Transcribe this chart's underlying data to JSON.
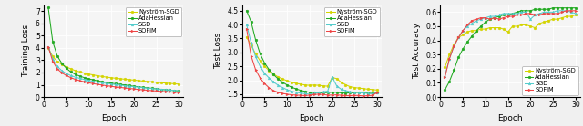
{
  "epochs": [
    1,
    2,
    3,
    4,
    5,
    6,
    7,
    8,
    9,
    10,
    11,
    12,
    13,
    14,
    15,
    16,
    17,
    18,
    19,
    20,
    21,
    22,
    23,
    24,
    25,
    26,
    27,
    28,
    29,
    30
  ],
  "train_loss": {
    "nystrom": [
      4.0,
      3.3,
      2.9,
      2.65,
      2.45,
      2.3,
      2.15,
      2.05,
      1.95,
      1.87,
      1.8,
      1.73,
      1.67,
      1.62,
      1.57,
      1.53,
      1.49,
      1.45,
      1.41,
      1.38,
      1.34,
      1.3,
      1.27,
      1.24,
      1.2,
      1.17,
      1.14,
      1.11,
      1.08,
      1.05
    ],
    "adahessian": [
      7.3,
      4.5,
      3.35,
      2.75,
      2.35,
      2.05,
      1.85,
      1.7,
      1.58,
      1.48,
      1.4,
      1.32,
      1.25,
      1.19,
      1.13,
      1.08,
      1.03,
      0.98,
      0.93,
      0.88,
      0.84,
      0.79,
      0.75,
      0.71,
      0.67,
      0.63,
      0.59,
      0.56,
      0.52,
      0.49
    ],
    "sgd": [
      4.1,
      3.1,
      2.5,
      2.15,
      1.92,
      1.75,
      1.62,
      1.52,
      1.43,
      1.35,
      1.28,
      1.22,
      1.16,
      1.11,
      1.06,
      1.01,
      0.97,
      0.92,
      0.88,
      0.84,
      0.8,
      0.76,
      0.73,
      0.69,
      0.66,
      0.63,
      0.6,
      0.57,
      0.54,
      0.51
    ],
    "sofim": [
      4.1,
      2.9,
      2.3,
      1.98,
      1.75,
      1.58,
      1.44,
      1.33,
      1.24,
      1.16,
      1.09,
      1.03,
      0.97,
      0.92,
      0.87,
      0.82,
      0.78,
      0.74,
      0.7,
      0.66,
      0.62,
      0.59,
      0.55,
      0.52,
      0.49,
      0.46,
      0.44,
      0.41,
      0.39,
      0.36
    ]
  },
  "test_loss": {
    "nystrom": [
      3.55,
      3.25,
      2.95,
      2.7,
      2.5,
      2.35,
      2.22,
      2.12,
      2.05,
      1.98,
      1.93,
      1.89,
      1.86,
      1.83,
      1.82,
      1.83,
      1.82,
      1.8,
      1.79,
      2.1,
      2.06,
      1.93,
      1.84,
      1.77,
      1.74,
      1.72,
      1.7,
      1.68,
      1.67,
      1.65
    ],
    "adahessian": [
      4.5,
      4.1,
      3.45,
      2.95,
      2.62,
      2.38,
      2.2,
      2.05,
      1.93,
      1.83,
      1.75,
      1.69,
      1.64,
      1.6,
      1.57,
      1.56,
      1.55,
      1.55,
      1.56,
      1.57,
      1.57,
      1.55,
      1.54,
      1.55,
      1.56,
      1.57,
      1.56,
      1.54,
      1.53,
      1.55
    ],
    "sgd": [
      4.0,
      3.35,
      2.85,
      2.5,
      2.25,
      2.08,
      1.94,
      1.82,
      1.74,
      1.66,
      1.61,
      1.57,
      1.54,
      1.52,
      1.5,
      1.53,
      1.56,
      1.59,
      1.61,
      2.12,
      1.8,
      1.68,
      1.63,
      1.59,
      1.57,
      1.56,
      1.54,
      1.53,
      1.52,
      1.55
    ],
    "sofim": [
      3.85,
      2.88,
      2.38,
      2.08,
      1.88,
      1.73,
      1.63,
      1.57,
      1.53,
      1.5,
      1.48,
      1.47,
      1.46,
      1.45,
      1.47,
      1.49,
      1.5,
      1.49,
      1.47,
      1.47,
      1.48,
      1.46,
      1.45,
      1.45,
      1.46,
      1.45,
      1.44,
      1.45,
      1.46,
      1.57
    ]
  },
  "test_acc": {
    "nystrom": [
      0.21,
      0.3,
      0.37,
      0.42,
      0.44,
      0.46,
      0.47,
      0.47,
      0.48,
      0.48,
      0.49,
      0.49,
      0.49,
      0.48,
      0.46,
      0.5,
      0.5,
      0.51,
      0.51,
      0.5,
      0.49,
      0.52,
      0.53,
      0.54,
      0.55,
      0.55,
      0.56,
      0.57,
      0.57,
      0.58
    ],
    "adahessian": [
      0.05,
      0.11,
      0.19,
      0.28,
      0.34,
      0.39,
      0.43,
      0.47,
      0.5,
      0.53,
      0.55,
      0.56,
      0.57,
      0.58,
      0.58,
      0.59,
      0.6,
      0.61,
      0.61,
      0.61,
      0.62,
      0.62,
      0.62,
      0.62,
      0.63,
      0.63,
      0.63,
      0.63,
      0.63,
      0.63
    ],
    "sgd": [
      0.15,
      0.27,
      0.36,
      0.42,
      0.47,
      0.5,
      0.52,
      0.54,
      0.55,
      0.56,
      0.57,
      0.57,
      0.58,
      0.59,
      0.59,
      0.59,
      0.59,
      0.6,
      0.6,
      0.55,
      0.58,
      0.59,
      0.6,
      0.6,
      0.6,
      0.61,
      0.61,
      0.61,
      0.6,
      0.59
    ],
    "sofim": [
      0.14,
      0.27,
      0.36,
      0.42,
      0.47,
      0.51,
      0.54,
      0.55,
      0.56,
      0.56,
      0.55,
      0.56,
      0.55,
      0.56,
      0.57,
      0.57,
      0.58,
      0.58,
      0.59,
      0.59,
      0.58,
      0.58,
      0.59,
      0.59,
      0.59,
      0.59,
      0.6,
      0.61,
      0.61,
      0.61
    ]
  },
  "colors": {
    "nystrom": "#d4d400",
    "adahessian": "#22aa22",
    "sgd": "#55cccc",
    "sofim": "#ee4444"
  },
  "markers": {
    "nystrom": "o",
    "adahessian": "o",
    "sgd": "^",
    "sofim": ">"
  },
  "labels": {
    "nystrom": "Nyström-SGD",
    "adahessian": "AdaHessian",
    "sgd": "SGD",
    "sofim": "SOFIM"
  },
  "xticks": [
    0,
    5,
    10,
    15,
    20,
    25,
    30
  ],
  "xlim": [
    0,
    31
  ],
  "train_ylim": [
    0,
    7.5
  ],
  "train_yticks": [
    0,
    1,
    2,
    3,
    4,
    5,
    6,
    7
  ],
  "test_loss_ylim": [
    1.4,
    4.7
  ],
  "test_loss_yticks": [
    1.5,
    2.0,
    2.5,
    3.0,
    3.5,
    4.0,
    4.5
  ],
  "test_acc_ylim": [
    0.0,
    0.65
  ],
  "test_acc_yticks": [
    0.0,
    0.1,
    0.2,
    0.3,
    0.4,
    0.5,
    0.6
  ]
}
